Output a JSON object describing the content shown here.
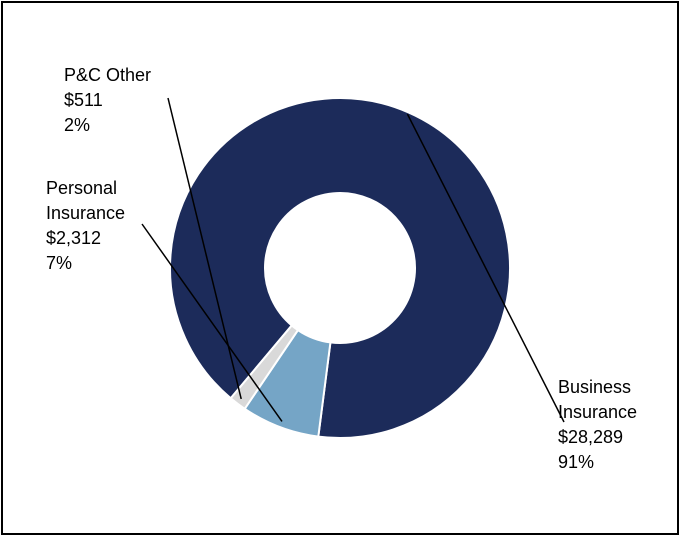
{
  "chart_data": {
    "type": "pie",
    "donut": true,
    "title": "",
    "categories": [
      "Business Insurance",
      "Personal Insurance",
      "P&C Other"
    ],
    "values": [
      28289,
      2312,
      511
    ],
    "percentages": [
      "91%",
      "7%",
      "2%"
    ],
    "colors": [
      "#1c2b5a",
      "#75a5c6",
      "#d9d9d9"
    ],
    "labels": [
      {
        "lines": [
          "Business",
          "Insurance",
          "$28,289",
          "91%"
        ]
      },
      {
        "lines": [
          "Personal",
          "Insurance",
          "$2,312",
          "7%"
        ]
      },
      {
        "lines": [
          "P&C Other",
          "$511",
          "2%"
        ]
      }
    ],
    "legend": "none",
    "grid": false
  }
}
